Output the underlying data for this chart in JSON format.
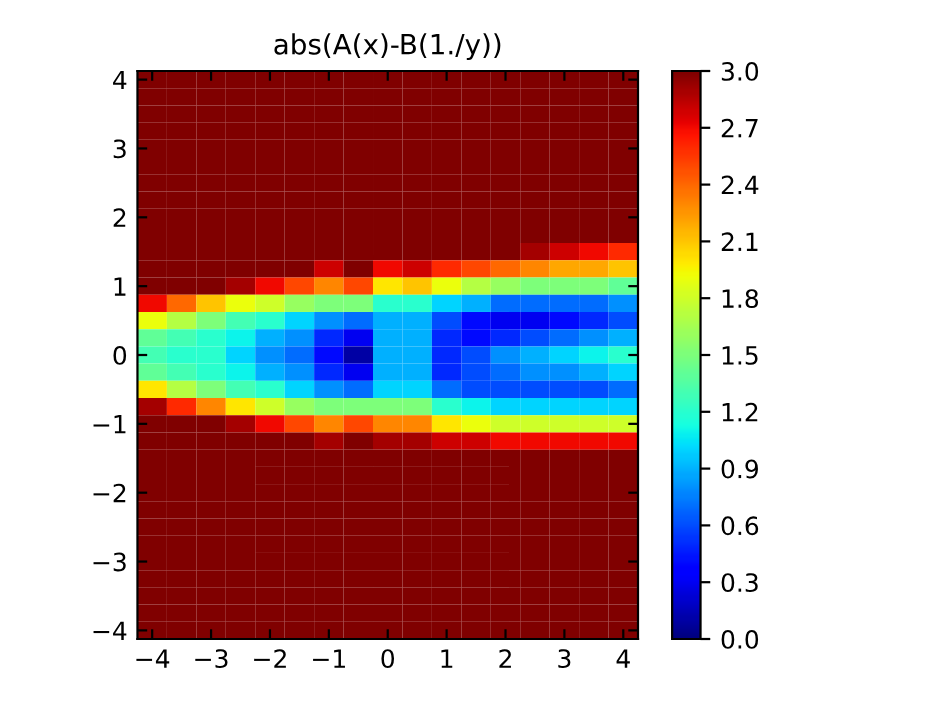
{
  "chart_data": {
    "type": "heatmap",
    "title": "abs(A(x)-B(1./y))",
    "categories": [
      "−4",
      null,
      "−3",
      null,
      "−2",
      null,
      "−1",
      null,
      "0",
      null,
      "1",
      null,
      "2",
      null,
      "3",
      null,
      "4"
    ],
    "y_categories": [
      "4",
      null,
      null,
      null,
      "3",
      null,
      null,
      null,
      "2",
      null,
      null,
      null,
      "1",
      null,
      null,
      null,
      "0",
      null,
      null,
      null,
      "−1",
      null,
      null,
      null,
      "−2",
      null,
      null,
      null,
      "−3",
      null,
      null,
      null,
      "−4"
    ],
    "clim": [
      0,
      3
    ],
    "cticks": [
      {
        "value": 0,
        "label": "0.0"
      },
      {
        "value": 0.3,
        "label": "0.3"
      },
      {
        "value": 0.6,
        "label": "0.6"
      },
      {
        "value": 0.9,
        "label": "0.9"
      },
      {
        "value": 1.2,
        "label": "1.2"
      },
      {
        "value": 1.5,
        "label": "1.5"
      },
      {
        "value": 1.8,
        "label": "1.8"
      },
      {
        "value": 2.1,
        "label": "2.1"
      },
      {
        "value": 2.4,
        "label": "2.4"
      },
      {
        "value": 2.7,
        "label": "2.7"
      },
      {
        "value": 3,
        "label": "3.0"
      }
    ],
    "cells": [
      [
        3,
        3,
        3,
        3,
        3,
        3,
        3,
        3,
        3,
        3,
        3,
        3,
        3,
        3,
        3,
        3,
        3
      ],
      [
        3,
        3,
        3,
        3,
        3,
        3,
        3,
        3,
        3,
        3,
        3,
        3,
        3,
        3,
        3,
        3,
        3
      ],
      [
        3,
        3,
        3,
        3,
        3,
        3,
        3,
        3,
        3,
        3,
        3,
        3,
        3,
        3,
        3,
        3,
        3
      ],
      [
        3,
        3,
        3,
        3,
        3,
        3,
        3,
        3,
        3,
        3,
        3,
        3,
        3,
        3,
        3,
        3,
        3
      ],
      [
        3,
        3,
        3,
        3,
        3,
        3,
        3,
        3,
        3,
        3,
        3,
        3,
        3,
        3,
        3,
        3,
        3
      ],
      [
        3,
        3,
        3,
        3,
        3,
        3,
        3,
        3,
        3,
        3,
        3,
        3,
        3,
        3,
        3,
        3,
        3
      ],
      [
        3,
        3,
        3,
        3,
        3,
        3,
        3,
        3,
        3,
        3,
        3,
        3,
        3,
        3,
        3,
        3,
        3
      ],
      [
        3,
        3,
        3,
        3,
        3,
        3,
        3,
        3,
        3,
        3,
        3,
        3,
        3,
        3,
        3,
        3,
        3
      ],
      [
        3,
        3,
        3,
        3,
        3,
        3,
        3,
        3,
        3,
        3,
        3,
        3,
        3,
        3,
        3,
        3,
        3
      ],
      [
        3,
        3,
        3,
        3,
        3,
        3,
        3,
        3,
        3,
        3,
        3,
        3,
        3,
        3,
        3,
        3,
        3
      ],
      [
        3,
        3,
        3,
        3,
        3,
        3,
        3,
        3,
        3,
        3,
        3,
        3,
        3,
        2.9,
        2.8,
        2.7,
        2.6
      ],
      [
        3,
        3,
        3,
        3,
        3,
        3,
        2.8,
        3,
        2.7,
        2.8,
        2.6,
        2.5,
        2.4,
        2.3,
        2.2,
        2.2,
        2.1
      ],
      [
        3,
        3,
        3,
        2.9,
        2.7,
        2.5,
        2.3,
        2.5,
        2.0,
        2.1,
        1.9,
        1.7,
        1.6,
        1.5,
        1.5,
        1.5,
        1.4
      ],
      [
        2.7,
        2.4,
        2.1,
        1.9,
        1.8,
        1.6,
        1.5,
        1.5,
        1.2,
        1.2,
        1.0,
        0.9,
        0.7,
        0.7,
        0.7,
        0.7,
        0.8
      ],
      [
        1.9,
        1.7,
        1.5,
        1.3,
        1.2,
        1.0,
        0.8,
        0.7,
        0.9,
        0.9,
        0.6,
        0.4,
        0.3,
        0.3,
        0.4,
        0.5,
        0.6
      ],
      [
        1.4,
        1.3,
        1.2,
        1.1,
        0.9,
        0.8,
        0.5,
        0.3,
        0.9,
        0.9,
        0.5,
        0.4,
        0.5,
        0.6,
        0.7,
        0.8,
        0.9
      ],
      [
        1.3,
        1.2,
        1.2,
        1.0,
        0.8,
        0.7,
        0.4,
        0.1,
        0.9,
        0.9,
        0.5,
        0.6,
        0.8,
        0.9,
        1.0,
        1.1,
        1.2
      ],
      [
        1.4,
        1.3,
        1.2,
        1.1,
        0.9,
        0.8,
        0.5,
        0.3,
        0.9,
        0.9,
        0.5,
        0.6,
        0.7,
        0.8,
        0.8,
        0.9,
        1.0
      ],
      [
        2.0,
        1.7,
        1.5,
        1.3,
        1.2,
        1.0,
        0.8,
        0.7,
        1.0,
        1.0,
        0.7,
        0.6,
        0.6,
        0.6,
        0.6,
        0.6,
        0.7
      ],
      [
        2.9,
        2.6,
        2.3,
        2.0,
        1.8,
        1.6,
        1.5,
        1.5,
        1.5,
        1.5,
        1.2,
        1.1,
        1.0,
        1.0,
        1.0,
        1.0,
        1.0
      ],
      [
        3,
        3,
        3,
        2.9,
        2.7,
        2.5,
        2.3,
        2.5,
        2.3,
        2.3,
        2.0,
        1.9,
        1.8,
        1.8,
        1.8,
        1.8,
        1.8
      ],
      [
        3,
        3,
        3,
        3,
        3,
        3,
        2.9,
        3,
        2.9,
        2.9,
        2.8,
        2.8,
        2.7,
        2.7,
        2.7,
        2.7,
        2.7
      ],
      [
        3,
        3,
        3,
        3,
        3,
        3,
        3,
        3,
        3,
        3,
        3,
        3,
        3,
        3,
        3,
        3,
        3
      ],
      [
        3,
        3,
        3,
        3,
        3,
        3,
        3,
        3,
        3,
        3,
        3,
        3,
        3,
        3,
        3,
        3,
        3
      ],
      [
        3,
        3,
        3,
        3,
        3,
        3,
        3,
        3,
        3,
        3,
        3,
        3,
        3,
        3,
        3,
        3,
        3
      ],
      [
        3,
        3,
        3,
        3,
        3,
        3,
        3,
        3,
        3,
        3,
        3,
        3,
        3,
        3,
        3,
        3,
        3
      ],
      [
        3,
        3,
        3,
        3,
        3,
        3,
        3,
        3,
        3,
        3,
        3,
        3,
        3,
        3,
        3,
        3,
        3
      ],
      [
        3,
        3,
        3,
        3,
        3,
        3,
        3,
        3,
        3,
        3,
        3,
        3,
        3,
        3,
        3,
        3,
        3
      ],
      [
        3,
        3,
        3,
        3,
        3,
        3,
        3,
        3,
        3,
        3,
        3,
        3,
        3,
        3,
        3,
        3,
        3
      ],
      [
        3,
        3,
        3,
        3,
        3,
        3,
        3,
        3,
        3,
        3,
        3,
        3,
        3,
        3,
        3,
        3,
        3
      ],
      [
        3,
        3,
        3,
        3,
        3,
        3,
        3,
        3,
        3,
        3,
        3,
        3,
        3,
        3,
        3,
        3,
        3
      ],
      [
        3,
        3,
        3,
        3,
        3,
        3,
        3,
        3,
        3,
        3,
        3,
        3,
        3,
        3,
        3,
        3,
        3
      ],
      [
        3,
        3,
        3,
        3,
        3,
        3,
        3,
        3,
        3,
        3,
        3,
        3,
        3,
        3,
        3,
        3,
        3
      ]
    ]
  }
}
